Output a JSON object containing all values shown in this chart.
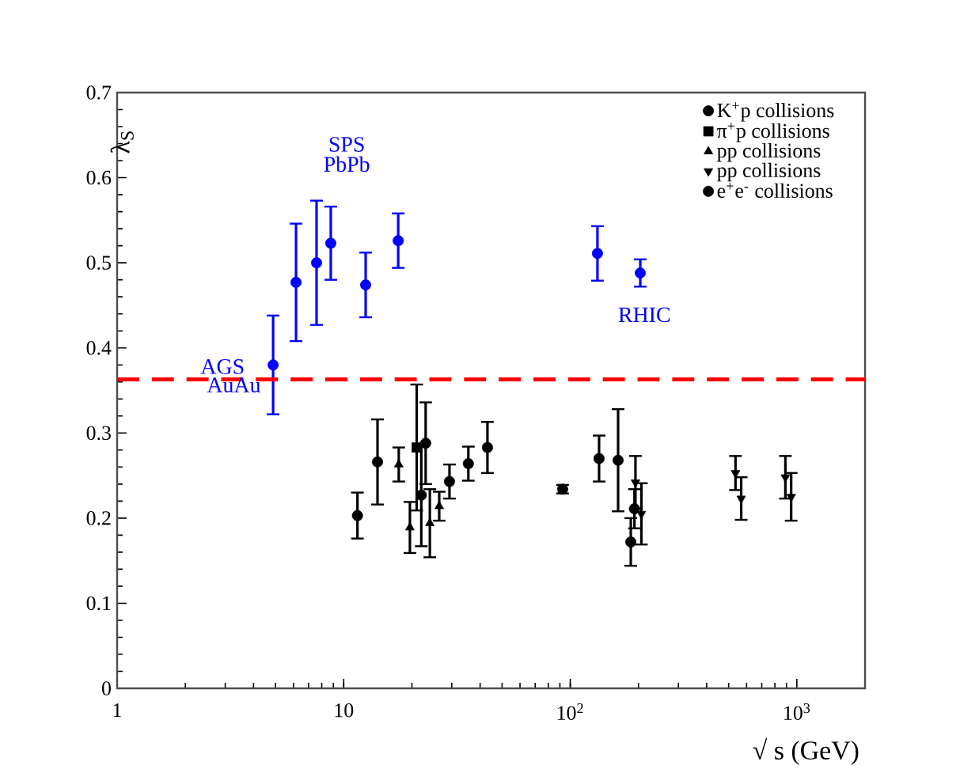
{
  "chart_data": {
    "type": "scatter",
    "xlabel": "√ s (GeV)",
    "ylabel": "λ$_{S}$",
    "log": "x",
    "xlim": [
      1,
      2000
    ],
    "ylim": [
      0,
      0.7
    ],
    "xticks": [
      1,
      10,
      {
        "value": 100,
        "label": "10$^{2}$"
      },
      {
        "value": 1000,
        "label": "10$^{3}$"
      }
    ],
    "yticks": [
      0,
      0.1,
      0.2,
      0.3,
      0.4,
      0.5,
      0.6,
      0.7
    ],
    "legend": "top right",
    "grid": false,
    "series": [
      {
        "name": "K$^{+}$p collisions",
        "color": "#000000",
        "marker": "circle",
        "x": [
          11.5,
          23.0,
          22.0
        ],
        "values": [
          0.203,
          0.288,
          0.227
        ],
        "errors": [
          0.027,
          0.048,
          0.06
        ]
      },
      {
        "name": "π$^{+}$p collisions",
        "color": "#000000",
        "marker": "square",
        "x": [
          21.0
        ],
        "values": [
          0.283
        ],
        "errors": [
          0.074
        ]
      },
      {
        "name": "pp collisions",
        "color": "#000000",
        "marker": "triangle",
        "x": [
          17.5,
          19.6,
          24.0,
          26.4
        ],
        "values": [
          0.263,
          0.189,
          0.194,
          0.214
        ],
        "errors": [
          0.02,
          0.03,
          0.04,
          0.017
        ]
      },
      {
        "name": "pp collisions",
        "color": "#000000",
        "marker": "triangle down",
        "x": [
          194,
          206,
          536,
          568,
          890,
          944
        ],
        "values": [
          0.242,
          0.205,
          0.253,
          0.223,
          0.248,
          0.225
        ],
        "errors": [
          0.031,
          0.036,
          0.02,
          0.025,
          0.025,
          0.028
        ]
      },
      {
        "name": "e$^{+}$e$^{-}$ collisions",
        "color": "#000000",
        "marker": "circle",
        "x": [
          14.1,
          29.3,
          35.5,
          43.1,
          92.5,
          134,
          162.6,
          192,
          185
        ],
        "values": [
          0.266,
          0.243,
          0.264,
          0.283,
          0.234,
          0.27,
          0.268,
          0.211,
          0.172
        ],
        "errors": [
          0.05,
          0.02,
          0.02,
          0.03,
          0.005,
          0.027,
          0.06,
          0.023,
          0.028
        ]
      },
      {
        "color": "#0000ff",
        "marker": "circle",
        "x": [
          4.88,
          6.16,
          7.59,
          8.77,
          12.5,
          17.4,
          131.8,
          203.7
        ],
        "values": [
          0.38,
          0.477,
          0.5,
          0.523,
          0.474,
          0.526,
          0.511,
          0.488
        ],
        "errors": [
          0.058,
          0.069,
          0.073,
          0.043,
          0.038,
          0.032,
          0.032,
          0.016
        ]
      }
    ],
    "ref_lines": [
      {
        "axis": "y",
        "value": 0.363,
        "color": "#ff0000",
        "line_style": "dashed"
      }
    ],
    "annotations": [
      "SPS",
      "PbPb",
      "AGS",
      "AuAu",
      "RHIC"
    ]
  }
}
